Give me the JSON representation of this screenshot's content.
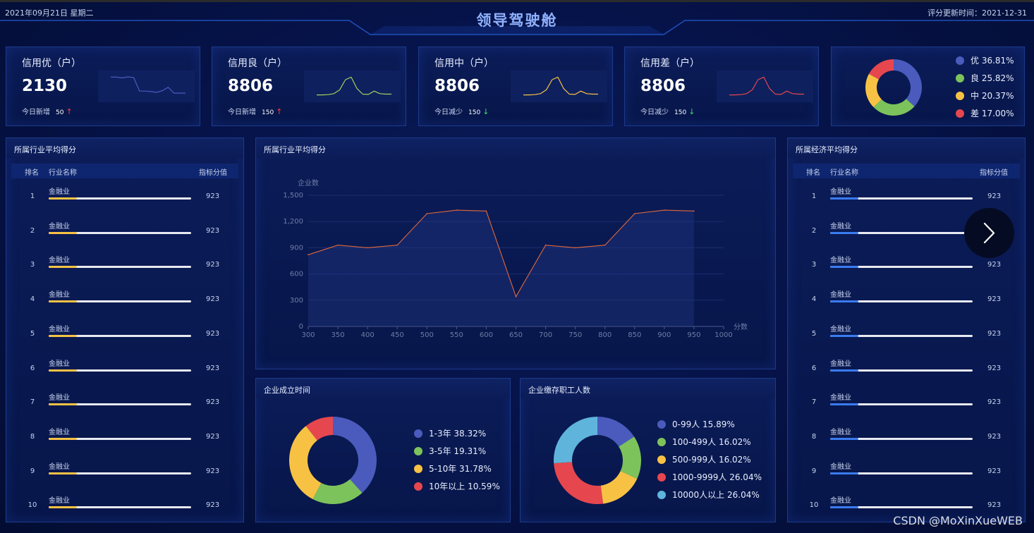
{
  "header": {
    "date": "2021年09月21日 星期二",
    "title": "领导驾驶舱",
    "update": "评分更新时间：2021-12-31"
  },
  "colors": {
    "blue": "#4a5bbd",
    "green": "#7dc35b",
    "yellow": "#f7c244",
    "red": "#e6474e",
    "cyan": "#5fb4dc",
    "line": "#e0683a"
  },
  "cards": [
    {
      "title": "信用优（户）",
      "value": "2130",
      "sub": "今日新增",
      "delta": "50",
      "arrow": "↑",
      "spark_color": "#4a5bbd",
      "spark": [
        0.85,
        0.85,
        0.82,
        0.86,
        0.83,
        0.3,
        0.3,
        0.28,
        0.25,
        0.32,
        0.45,
        0.22,
        0.22,
        0.22
      ]
    },
    {
      "title": "信用良（户）",
      "value": "8806",
      "sub": "今日新增",
      "delta": "150",
      "arrow": "↑",
      "spark_color": "#9fd35b",
      "spark": [
        0.15,
        0.15,
        0.16,
        0.2,
        0.35,
        0.75,
        0.85,
        0.4,
        0.18,
        0.17,
        0.3,
        0.2,
        0.18,
        0.18
      ]
    },
    {
      "title": "信用中（户）",
      "value": "8806",
      "sub": "今日减少",
      "delta": "150",
      "arrow": "↓",
      "spark_color": "#f7c244",
      "spark": [
        0.15,
        0.15,
        0.16,
        0.2,
        0.35,
        0.75,
        0.85,
        0.4,
        0.18,
        0.17,
        0.3,
        0.2,
        0.18,
        0.18
      ]
    },
    {
      "title": "信用差（户）",
      "value": "8806",
      "sub": "今日减少",
      "delta": "150",
      "arrow": "↓",
      "spark_color": "#e6474e",
      "spark": [
        0.15,
        0.15,
        0.16,
        0.2,
        0.35,
        0.75,
        0.85,
        0.4,
        0.18,
        0.17,
        0.3,
        0.2,
        0.18,
        0.18
      ]
    }
  ],
  "credit_pie": {
    "items": [
      {
        "label": "优 36.81%",
        "value": 36.81,
        "color": "#4a5bbd"
      },
      {
        "label": "良 25.82%",
        "value": 25.82,
        "color": "#7dc35b"
      },
      {
        "label": "中 20.37%",
        "value": 20.37,
        "color": "#f7c244"
      },
      {
        "label": "差 17.00%",
        "value": 17.0,
        "color": "#e6474e"
      }
    ]
  },
  "left_table": {
    "title": "所属行业平均得分",
    "headers": [
      "排名",
      "行业名称",
      "指标分值"
    ],
    "fill_color": "#f7c244",
    "rows": [
      {
        "rank": "1",
        "name": "金融业",
        "value": "923"
      },
      {
        "rank": "2",
        "name": "金融业",
        "value": "923"
      },
      {
        "rank": "3",
        "name": "金融业",
        "value": "923"
      },
      {
        "rank": "4",
        "name": "金融业",
        "value": "923"
      },
      {
        "rank": "5",
        "name": "金融业",
        "value": "923"
      },
      {
        "rank": "6",
        "name": "金融业",
        "value": "923"
      },
      {
        "rank": "7",
        "name": "金融业",
        "value": "923"
      },
      {
        "rank": "8",
        "name": "金融业",
        "value": "923"
      },
      {
        "rank": "9",
        "name": "金融业",
        "value": "923"
      },
      {
        "rank": "10",
        "name": "金融业",
        "value": "923"
      }
    ]
  },
  "right_table": {
    "title": "所属经济平均得分",
    "headers": [
      "排名",
      "行业名称",
      "指标分值"
    ],
    "fill_color": "#3a7bf0",
    "rows": [
      {
        "rank": "1",
        "name": "金融业",
        "value": "923"
      },
      {
        "rank": "2",
        "name": "金融业",
        "value": "923"
      },
      {
        "rank": "3",
        "name": "金融业",
        "value": "923"
      },
      {
        "rank": "4",
        "name": "金融业",
        "value": "923"
      },
      {
        "rank": "5",
        "name": "金融业",
        "value": "923"
      },
      {
        "rank": "6",
        "name": "金融业",
        "value": "923"
      },
      {
        "rank": "7",
        "name": "金融业",
        "value": "923"
      },
      {
        "rank": "8",
        "name": "金融业",
        "value": "923"
      },
      {
        "rank": "9",
        "name": "金融业",
        "value": "923"
      },
      {
        "rank": "10",
        "name": "金融业",
        "value": "923"
      }
    ]
  },
  "line_panel": {
    "title": "所属行业平均得分"
  },
  "founding_panel": {
    "title": "企业成立时间"
  },
  "staff_panel": {
    "title": "企业缴存职工人数"
  },
  "nav": {
    "icon": "chevron-right-icon"
  },
  "watermark": "CSDN @MoXinXueWEB",
  "chart_data": [
    {
      "type": "line",
      "title": "",
      "ylabel": "企业数",
      "xlabel": "分数",
      "x": [
        300,
        350,
        400,
        450,
        500,
        550,
        600,
        650,
        700,
        750,
        800,
        850,
        900,
        950
      ],
      "x_ticks": [
        300,
        350,
        400,
        450,
        500,
        550,
        600,
        650,
        700,
        750,
        800,
        850,
        900,
        950,
        1000
      ],
      "y_ticks": [
        "0",
        "300",
        "600",
        "900",
        "1,200",
        "1,500"
      ],
      "xlim": [
        300,
        1000
      ],
      "ylim": [
        0,
        1500
      ],
      "grid": true,
      "series": [
        {
          "values": [
            820,
            930,
            900,
            930,
            1290,
            1330,
            1320,
            340,
            930,
            900,
            930,
            1290,
            1330,
            1320
          ],
          "color": "#e0683a"
        }
      ]
    },
    {
      "type": "pie",
      "title": "",
      "legend": "right",
      "items": [
        {
          "label": "1-3年 38.32%",
          "value": 38.32,
          "color": "#4a5bbd"
        },
        {
          "label": "3-5年 19.31%",
          "value": 19.31,
          "color": "#7dc35b"
        },
        {
          "label": "5-10年 31.78%",
          "value": 31.78,
          "color": "#f7c244"
        },
        {
          "label": "10年以上 10.59%",
          "value": 10.59,
          "color": "#e6474e"
        }
      ]
    },
    {
      "type": "pie",
      "title": "",
      "legend": "right",
      "items": [
        {
          "label": "0-99人 15.89%",
          "value": 15.89,
          "color": "#4a5bbd"
        },
        {
          "label": "100-499人 16.02%",
          "value": 16.02,
          "color": "#7dc35b"
        },
        {
          "label": "500-999人 16.02%",
          "value": 16.02,
          "color": "#f7c244"
        },
        {
          "label": "1000-9999人 26.04%",
          "value": 26.04,
          "color": "#e6474e"
        },
        {
          "label": "10000人以上 26.04%",
          "value": 26.04,
          "color": "#5fb4dc"
        }
      ]
    }
  ]
}
